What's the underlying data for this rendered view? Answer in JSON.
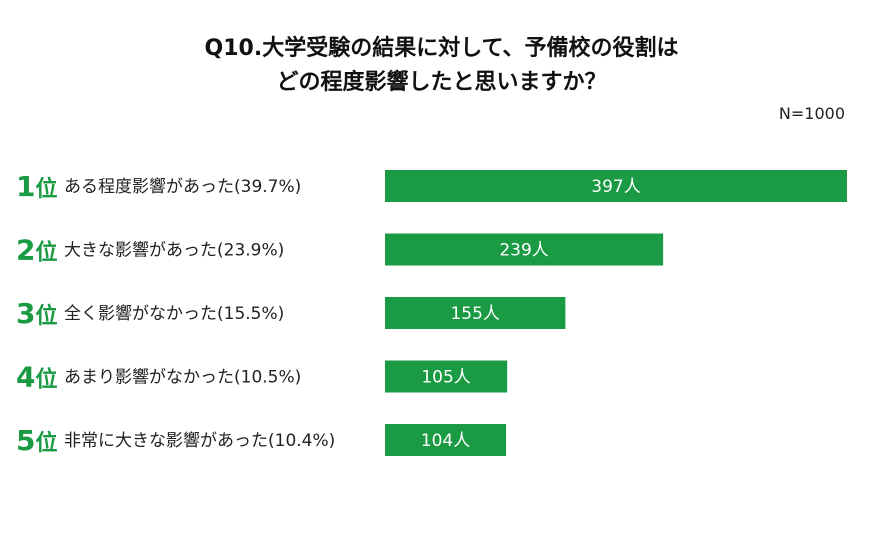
{
  "title_line1": "Q10.大学受験の結果に対して、予備校の役割は",
  "title_line2": "どの程度影響したと思いますか？",
  "sample_size": "N=1000",
  "colors": {
    "bar": "#1b9a44",
    "rank": "#1b9a44",
    "value_text": "#ffffff"
  },
  "chart_data": {
    "type": "bar",
    "orientation": "horizontal",
    "title": "Q10.大学受験の結果に対して、予備校の役割はどの程度影響したと思いますか？",
    "ranks": [
      "1位",
      "2位",
      "3位",
      "4位",
      "5位"
    ],
    "categories": [
      "ある程度影響があった(39.7%)",
      "大きな影響があった(23.9%)",
      "全く影響がなかった(15.5%)",
      "あまり影響がなかった(10.5%)",
      "非常に大きな影響があった(10.4%)"
    ],
    "values": [
      397,
      239,
      155,
      105,
      104
    ],
    "value_labels": [
      "397人",
      "239人",
      "155人",
      "105人",
      "104人"
    ],
    "xlim": [
      0,
      397
    ],
    "grid": false,
    "legend": "none"
  }
}
